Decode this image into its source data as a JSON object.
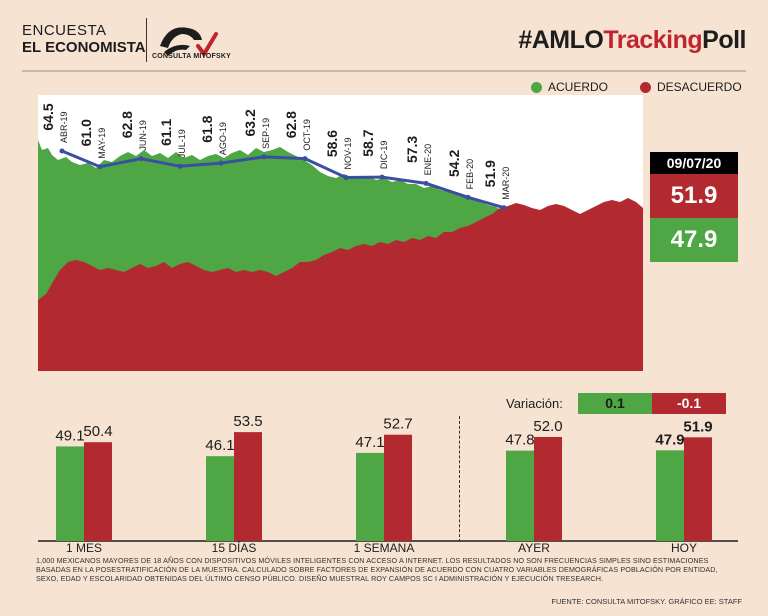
{
  "header": {
    "brand_line1": "ENCUESTA",
    "brand_line2": "EL ECONOMISTA",
    "logo_text": "CONSULTA MITOFSKY",
    "hashtag_a": "#AMLO",
    "hashtag_b": "Tracking",
    "hashtag_c": "Poll"
  },
  "legend": {
    "acuerdo": "ACUERDO",
    "desacuerdo": "DESACUERDO"
  },
  "colors": {
    "acuerdo": "#4ea644",
    "desacuerdo": "#b22a30",
    "trend_line": "#3a4fa0"
  },
  "current": {
    "date": "09/07/20",
    "desacuerdo": "51.9",
    "acuerdo": "47.9"
  },
  "variation": {
    "label": "Variación:",
    "acuerdo": "0.1",
    "desacuerdo": "-0.1"
  },
  "chart_data": [
    {
      "type": "line",
      "title": "",
      "series": [
        {
          "values": [
            64.5,
            61.0,
            62.8,
            61.1,
            61.8,
            63.2,
            62.8,
            58.6,
            58.7,
            57.3,
            54.2,
            51.9
          ]
        }
      ],
      "categories": [
        "ABR-19",
        "MAY-19",
        "JUN-19",
        "JUL-19",
        "AGO-19",
        "SEP-19",
        "OCT-19",
        "NOV-19",
        "DIC-19",
        "ENE-20",
        "FEB-20",
        "MAR-20"
      ],
      "value_labels": [
        "64.5",
        "61.0",
        "62.8",
        "61.1",
        "61.8",
        "63.2",
        "62.8",
        "58.6",
        "58.7",
        "57.3",
        "54.2",
        "51.9"
      ]
    },
    {
      "type": "bar",
      "categories": [
        "1 MES",
        "15 DÍAS",
        "1 SEMANA",
        "AYER",
        "HOY"
      ],
      "series": [
        {
          "name": "ACUERDO",
          "values": [
            49.1,
            46.1,
            47.1,
            47.8,
            47.9
          ]
        },
        {
          "name": "DESACUERDO",
          "values": [
            50.4,
            53.5,
            52.7,
            52.0,
            51.9
          ]
        }
      ],
      "value_labels_acuerdo": [
        "49.1",
        "46.1",
        "47.1",
        "47.8",
        "47.9"
      ],
      "value_labels_desacuerdo": [
        "50.4",
        "53.5",
        "52.7",
        "52.0",
        "51.9"
      ]
    }
  ],
  "footnote": "1,000 MEXICANOS MAYORES DE 18 AÑOS CON DISPOSITIVOS MÓVILES INTELIGENTES CON ACCESO A INTERNET. LOS RESULTADOS NO SON FRECUENCIAS SIMPLES SINO ESTIMACIONES BASADAS EN LA POSESTRATIFICACIÓN DE LA MUESTRA. CALCULADO SOBRE FACTORES DE EXPANSIÓN DE ACUERDO CON CUATRO VARIABLES DEMOGRÁFICAS POBLACIÓN POR ENTIDAD, SEXO, EDAD Y ESCOLARIDAD OBTENIDAS DEL ÚLTIMO CENSO PÚBLICO. DISEÑO MUESTRAL ROY CAMPOS SC I ADMINISTRACIÓN Y EJECUCIÓN TRESEARCH.",
  "source": "FUENTE: CONSULTA MITOFSKY. GRÁFICO EE: STAFF"
}
